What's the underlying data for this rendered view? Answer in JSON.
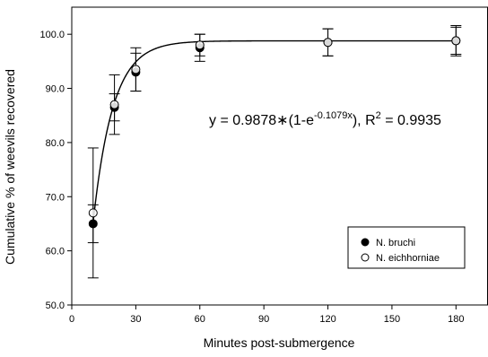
{
  "chart_data": {
    "type": "scatter",
    "xlabel": "Minutes post-submergence",
    "ylabel": "Cumulative % of weevils recovered",
    "xlim": [
      0,
      195
    ],
    "ylim": [
      50.0,
      105.0
    ],
    "xticks": [
      0,
      30,
      60,
      90,
      120,
      150,
      180
    ],
    "yticks": [
      50.0,
      60.0,
      70.0,
      80.0,
      90.0,
      100.0
    ],
    "ytick_labels": [
      "50.0",
      "60.0",
      "70.0",
      "80.0",
      "90.0",
      "100.0"
    ],
    "grid": false,
    "legend_position": "bottom-right",
    "series": [
      {
        "name": "N. bruchi",
        "marker": "filled-circle",
        "color": "#000000",
        "points": [
          {
            "x": 10,
            "y": 65.0,
            "err": 3.5
          },
          {
            "x": 20,
            "y": 86.5,
            "err": 2.5
          },
          {
            "x": 30,
            "y": 93.0,
            "err": 3.5
          },
          {
            "x": 60,
            "y": 97.5,
            "err": 2.5
          },
          {
            "x": 120,
            "y": 98.5,
            "err": 2.5
          },
          {
            "x": 180,
            "y": 98.8,
            "err": 2.5
          }
        ]
      },
      {
        "name": "N. eichhorniae",
        "marker": "open-circle",
        "color": "#000000",
        "points": [
          {
            "x": 10,
            "y": 67.0,
            "err": 12.0
          },
          {
            "x": 20,
            "y": 87.0,
            "err": 5.5
          },
          {
            "x": 30,
            "y": 93.5,
            "err": 4.0
          },
          {
            "x": 60,
            "y": 98.0,
            "err": 2.0
          },
          {
            "x": 120,
            "y": 98.5,
            "err": 2.5
          },
          {
            "x": 180,
            "y": 98.8,
            "err": 2.8
          }
        ]
      }
    ],
    "fit_curve": {
      "formula": "y = 0.9878*100*(1-exp(-0.1079x))",
      "a": 0.9878,
      "k": 0.1079
    },
    "annotation": {
      "main": "y = 0.9878∗(1-e",
      "exponent": "-0.1079x",
      "mid": "), R",
      "r2_sup": "2",
      "tail": " = 0.9935"
    }
  }
}
